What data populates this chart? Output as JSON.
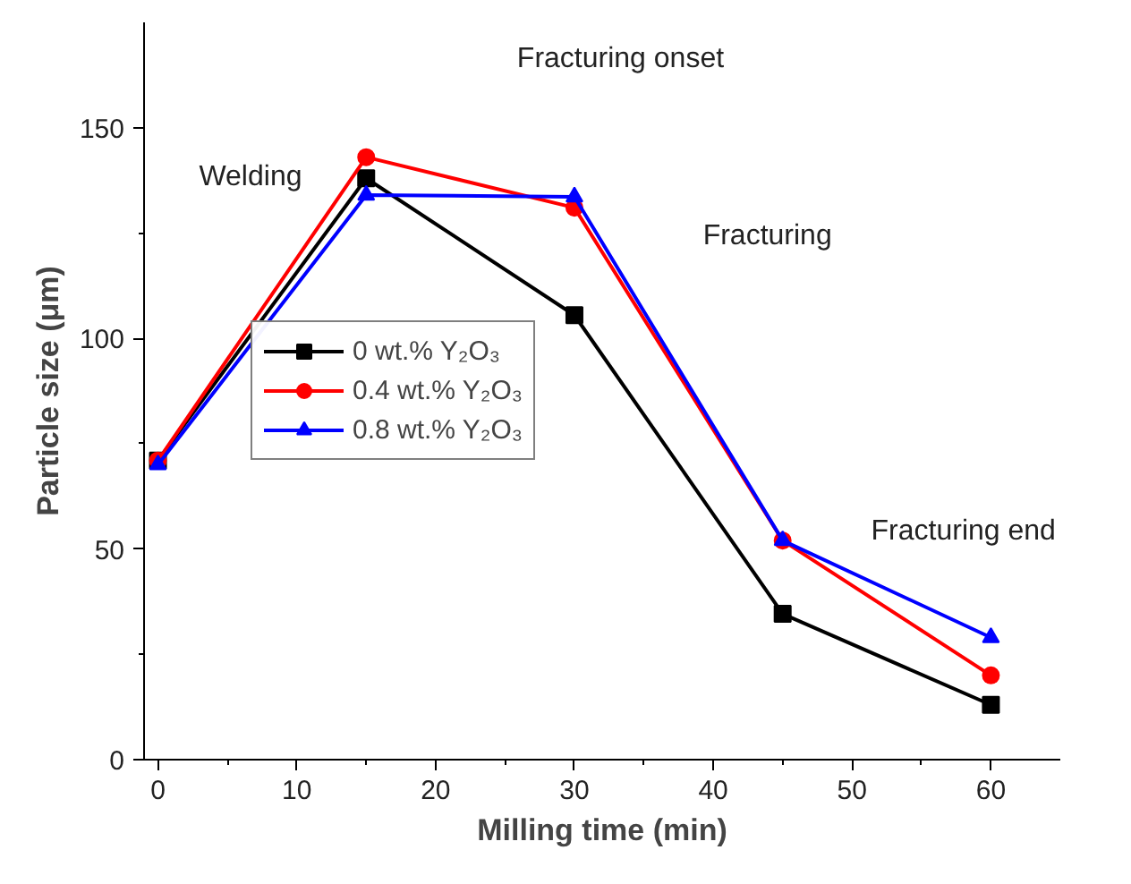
{
  "chart_data": {
    "type": "line",
    "xlabel": "Milling time (min)",
    "ylabel": "Particle size (μm)",
    "x": [
      0,
      15,
      30,
      45,
      60
    ],
    "series": [
      {
        "name": "0 wt.% Y₂O₃",
        "color": "#000000",
        "marker": "square",
        "values": [
          71,
          138,
          105.5,
          34.6,
          13
        ]
      },
      {
        "name": "0.4 wt.% Y₂O₃",
        "color": "#ff0000",
        "marker": "circle",
        "values": [
          71,
          143,
          131,
          52,
          20
        ]
      },
      {
        "name": "0.8 wt.% Y₂O₃",
        "color": "#0000ff",
        "marker": "triangle",
        "values": [
          70,
          134,
          133.6,
          52,
          29
        ]
      }
    ],
    "annotations": [
      "Welding",
      "Fracturing onset",
      "Fracturing",
      "Fracturing end"
    ],
    "xlim": [
      -1,
      65
    ],
    "ylim": [
      0,
      175
    ],
    "xticks": [
      0,
      10,
      20,
      30,
      40,
      50,
      60
    ],
    "yticks": [
      0,
      50,
      100,
      150
    ],
    "grid": false,
    "legend": "center left",
    "line_style": "solid"
  }
}
